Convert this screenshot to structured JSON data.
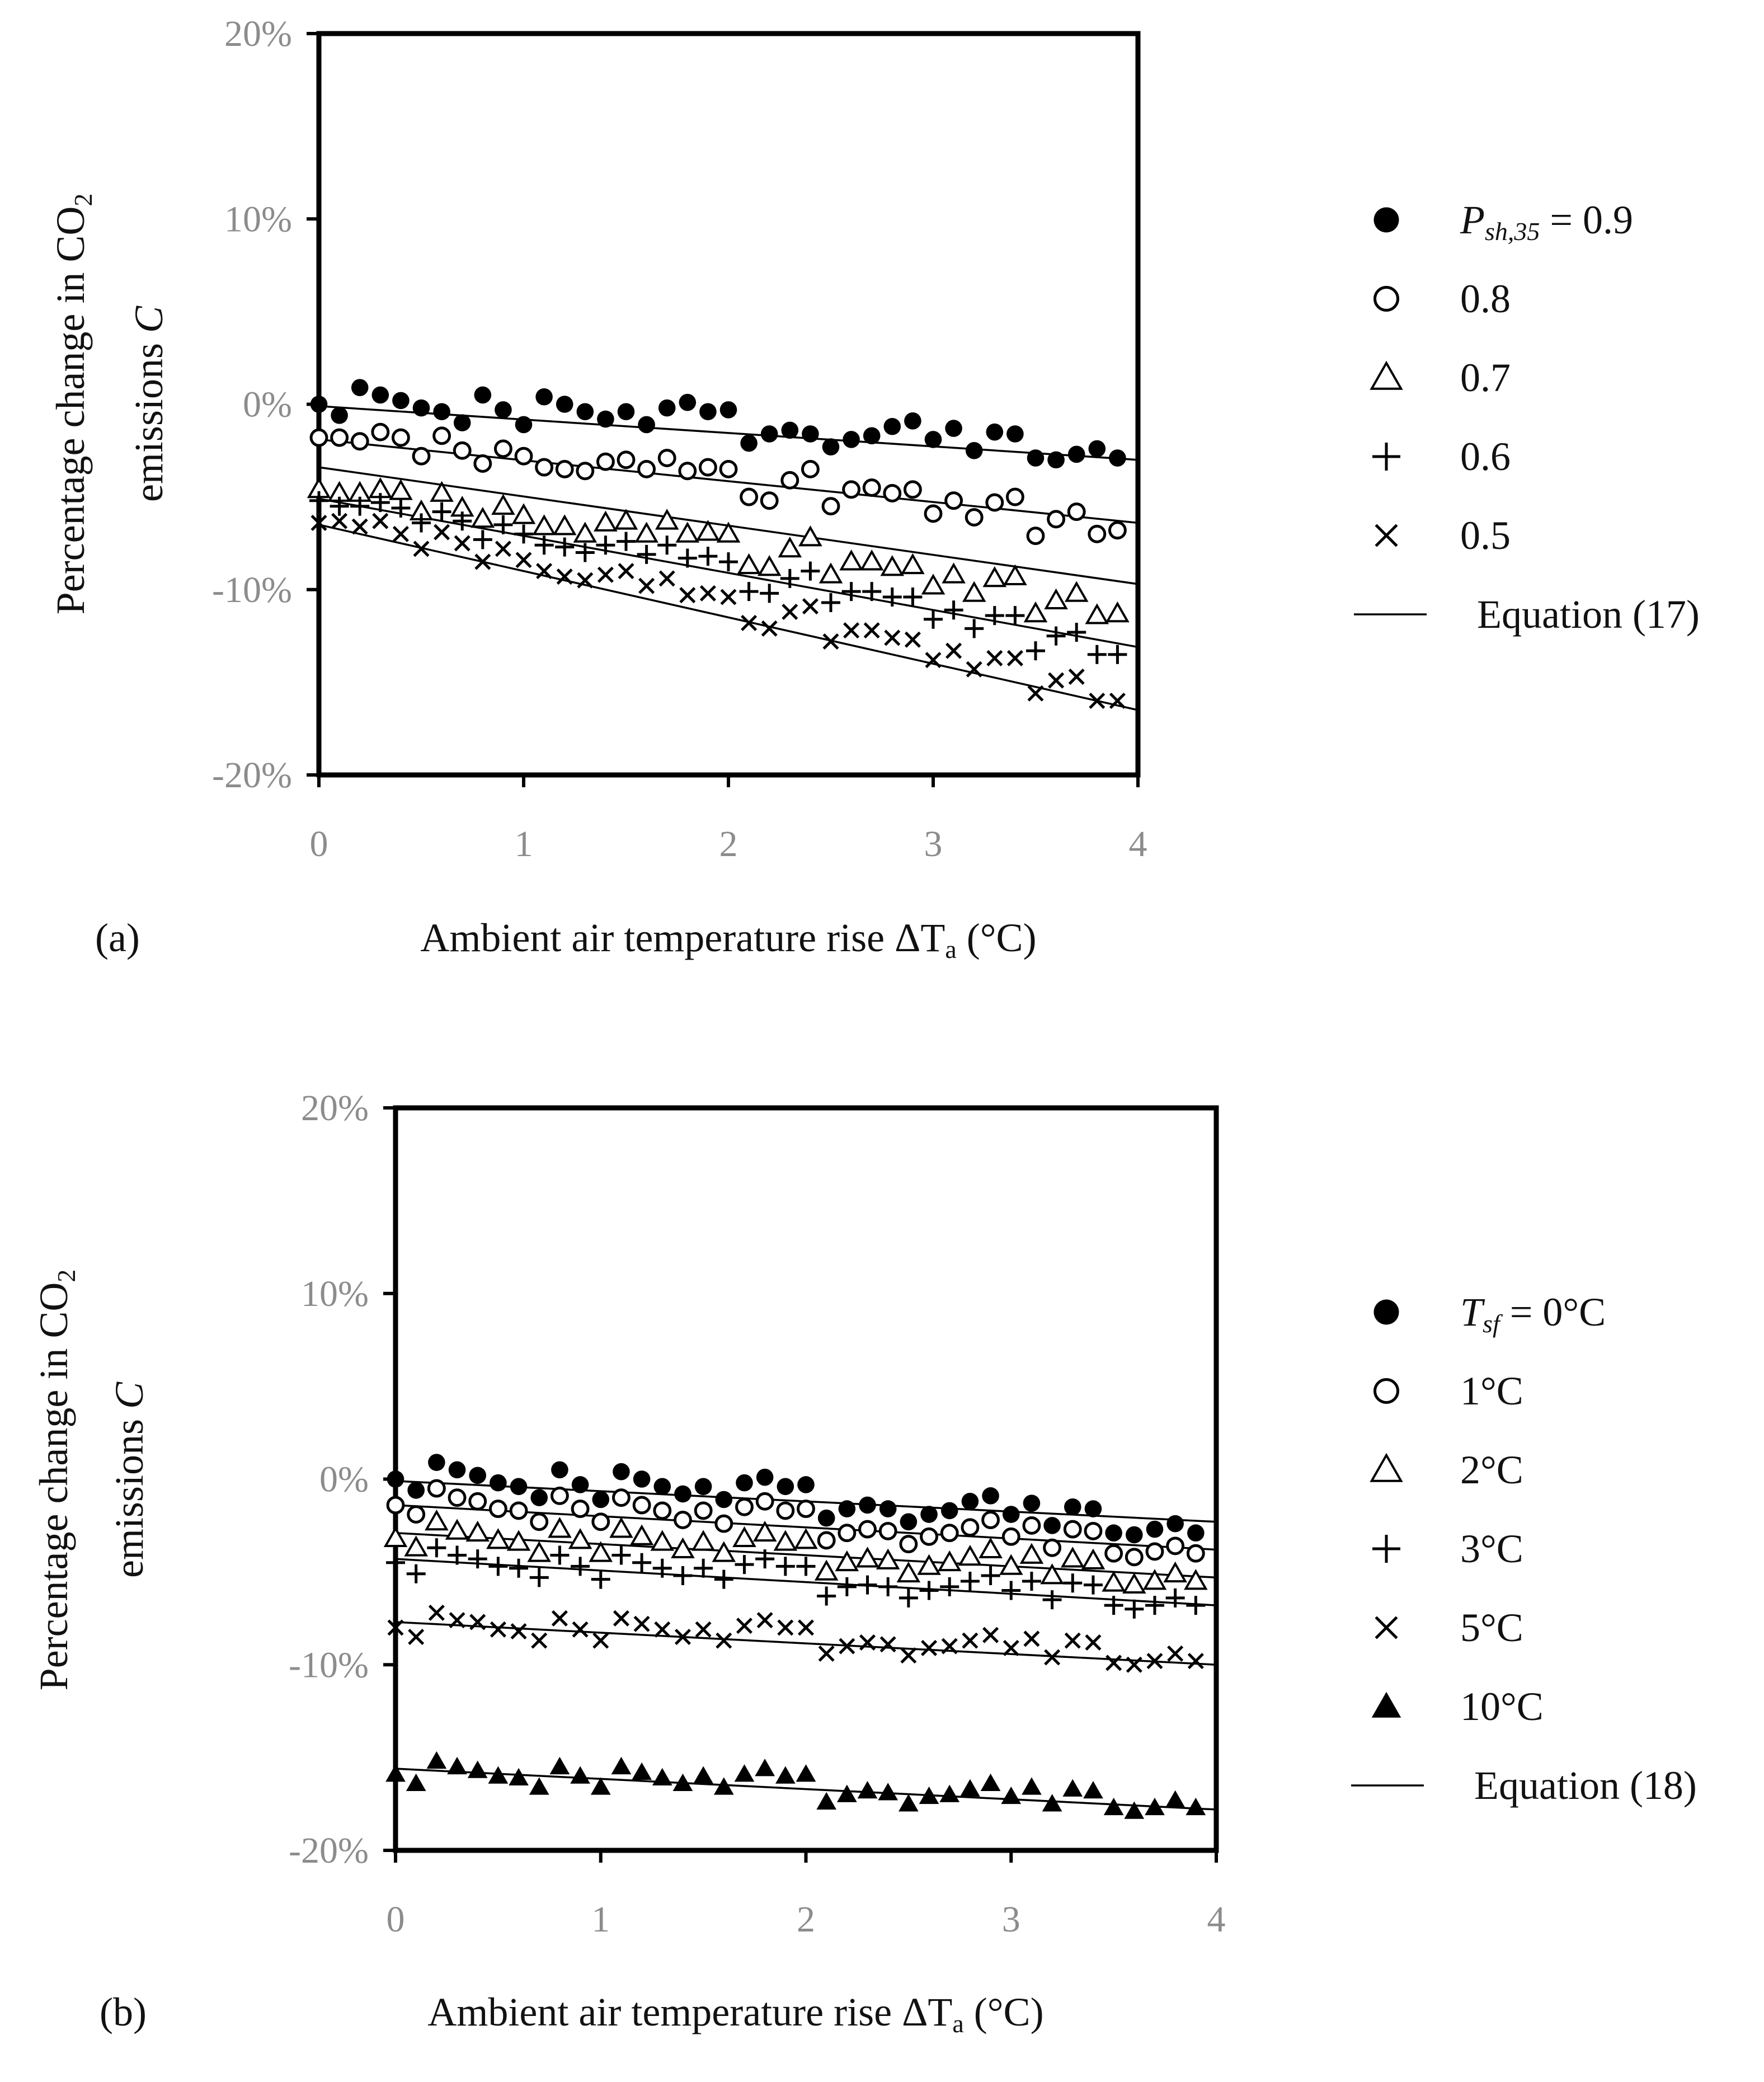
{
  "colors": {
    "ink": "#000000",
    "tick": "#8c8c8c",
    "background": "#ffffff"
  },
  "chart_data": [
    {
      "type": "scatter",
      "panel_label": "(a)",
      "xlabel": {
        "text": "Ambient air temperature rise ΔT",
        "sub": "a",
        "tail": " (°C)"
      },
      "ylabel": {
        "line1": "Percentage change in CO",
        "line1_sub": "2",
        "line2": "emissions ",
        "line2_italic": "C"
      },
      "xlim": [
        0,
        4
      ],
      "ylim": [
        -0.2,
        0.2
      ],
      "xticks": [
        0,
        1,
        2,
        3,
        4
      ],
      "xtick_labels": [
        "0",
        "1",
        "2",
        "3",
        "4"
      ],
      "yticks": [
        0.2,
        0.1,
        0.0,
        -0.1,
        -0.2
      ],
      "ytick_labels": [
        "20%",
        "10%",
        "0%",
        "-10%",
        "-20%"
      ],
      "grid": false,
      "legend_position": "right",
      "legend_title": {
        "italic": "P",
        "sub": "sh,35",
        "tail": " = 0.9"
      },
      "legend_line_label": "Equation (17)",
      "x": [
        0.0,
        0.1,
        0.2,
        0.3,
        0.4,
        0.5,
        0.6,
        0.7,
        0.8,
        0.9,
        1.0,
        1.1,
        1.2,
        1.3,
        1.4,
        1.5,
        1.6,
        1.7,
        1.8,
        1.9,
        2.0,
        2.1,
        2.2,
        2.3,
        2.4,
        2.5,
        2.6,
        2.7,
        2.8,
        2.9,
        3.0,
        3.1,
        3.2,
        3.3,
        3.4,
        3.5,
        3.6,
        3.7,
        3.8,
        3.9
      ],
      "series": [
        {
          "name": "0.9",
          "marker": "filled-circle",
          "fit": [
            -0.001,
            -0.03
          ],
          "values": [
            0.0,
            -0.006,
            0.009,
            0.005,
            0.002,
            -0.002,
            -0.004,
            -0.01,
            0.005,
            -0.003,
            -0.011,
            0.004,
            0.0,
            -0.004,
            -0.008,
            -0.004,
            -0.011,
            -0.002,
            0.001,
            -0.004,
            -0.003,
            -0.021,
            -0.016,
            -0.014,
            -0.016,
            -0.023,
            -0.019,
            -0.017,
            -0.012,
            -0.009,
            -0.019,
            -0.013,
            -0.025,
            -0.015,
            -0.016,
            -0.029,
            -0.03,
            -0.027,
            -0.024,
            -0.029
          ]
        },
        {
          "name": "0.8",
          "marker": "open-circle",
          "fit": [
            -0.019,
            -0.064
          ],
          "values": [
            -0.018,
            -0.018,
            -0.02,
            -0.015,
            -0.018,
            -0.028,
            -0.017,
            -0.025,
            -0.032,
            -0.024,
            -0.028,
            -0.034,
            -0.035,
            -0.036,
            -0.031,
            -0.03,
            -0.035,
            -0.029,
            -0.036,
            -0.034,
            -0.035,
            -0.05,
            -0.052,
            -0.041,
            -0.035,
            -0.055,
            -0.046,
            -0.045,
            -0.048,
            -0.046,
            -0.059,
            -0.052,
            -0.061,
            -0.053,
            -0.05,
            -0.071,
            -0.062,
            -0.058,
            -0.07,
            -0.068
          ]
        },
        {
          "name": "0.7",
          "marker": "open-triangle",
          "fit": [
            -0.034,
            -0.097
          ],
          "values": [
            -0.046,
            -0.048,
            -0.048,
            -0.046,
            -0.047,
            -0.058,
            -0.048,
            -0.056,
            -0.062,
            -0.055,
            -0.06,
            -0.066,
            -0.066,
            -0.07,
            -0.064,
            -0.063,
            -0.07,
            -0.063,
            -0.07,
            -0.069,
            -0.07,
            -0.087,
            -0.088,
            -0.078,
            -0.072,
            -0.092,
            -0.085,
            -0.085,
            -0.088,
            -0.087,
            -0.098,
            -0.092,
            -0.102,
            -0.094,
            -0.093,
            -0.113,
            -0.106,
            -0.102,
            -0.114,
            -0.113
          ]
        },
        {
          "name": "0.6",
          "marker": "plus",
          "fit": [
            -0.051,
            -0.131
          ],
          "values": [
            -0.052,
            -0.055,
            -0.055,
            -0.053,
            -0.056,
            -0.064,
            -0.058,
            -0.063,
            -0.073,
            -0.065,
            -0.07,
            -0.076,
            -0.077,
            -0.08,
            -0.076,
            -0.074,
            -0.081,
            -0.076,
            -0.083,
            -0.082,
            -0.085,
            -0.101,
            -0.102,
            -0.094,
            -0.09,
            -0.107,
            -0.101,
            -0.101,
            -0.104,
            -0.104,
            -0.116,
            -0.111,
            -0.121,
            -0.114,
            -0.114,
            -0.133,
            -0.125,
            -0.123,
            -0.135,
            -0.135
          ]
        },
        {
          "name": "0.5",
          "marker": "cross",
          "fit": [
            -0.065,
            -0.165
          ],
          "values": [
            -0.064,
            -0.063,
            -0.066,
            -0.063,
            -0.07,
            -0.078,
            -0.069,
            -0.075,
            -0.085,
            -0.078,
            -0.084,
            -0.09,
            -0.093,
            -0.095,
            -0.092,
            -0.09,
            -0.098,
            -0.094,
            -0.103,
            -0.102,
            -0.104,
            -0.118,
            -0.121,
            -0.112,
            -0.109,
            -0.128,
            -0.122,
            -0.122,
            -0.126,
            -0.127,
            -0.138,
            -0.133,
            -0.143,
            -0.137,
            -0.137,
            -0.156,
            -0.149,
            -0.147,
            -0.16,
            -0.16
          ]
        }
      ]
    },
    {
      "type": "scatter",
      "panel_label": "(b)",
      "xlabel": {
        "text": "Ambient air temperature rise ΔT",
        "sub": "a",
        "tail": " (°C)"
      },
      "ylabel": {
        "line1": "Percentage change in CO",
        "line1_sub": "2",
        "line2": "emissions ",
        "line2_italic": "C"
      },
      "xlim": [
        0,
        4
      ],
      "ylim": [
        -0.2,
        0.2
      ],
      "xticks": [
        0,
        1,
        2,
        3,
        4
      ],
      "xtick_labels": [
        "0",
        "1",
        "2",
        "3",
        "4"
      ],
      "yticks": [
        0.2,
        0.1,
        0.0,
        -0.1,
        -0.2
      ],
      "ytick_labels": [
        "20%",
        "10%",
        "0%",
        "-10%",
        "-20%"
      ],
      "grid": false,
      "legend_position": "right",
      "legend_title": {
        "italic": "T",
        "sub": "sf",
        "tail": "   = 0°C"
      },
      "legend_line_label": "Equation (18)",
      "x": [
        0.0,
        0.1,
        0.2,
        0.3,
        0.4,
        0.5,
        0.6,
        0.7,
        0.8,
        0.9,
        1.0,
        1.1,
        1.2,
        1.3,
        1.4,
        1.5,
        1.6,
        1.7,
        1.8,
        1.9,
        2.0,
        2.1,
        2.2,
        2.3,
        2.4,
        2.5,
        2.6,
        2.7,
        2.8,
        2.9,
        3.0,
        3.1,
        3.2,
        3.3,
        3.4,
        3.5,
        3.6,
        3.7,
        3.8,
        3.9
      ],
      "series": [
        {
          "name": "0°C",
          "marker": "filled-circle",
          "fit": [
            -0.001,
            -0.023
          ],
          "values": [
            0.0,
            -0.006,
            0.009,
            0.005,
            0.002,
            -0.002,
            -0.004,
            -0.01,
            0.005,
            -0.003,
            -0.011,
            0.004,
            0.0,
            -0.004,
            -0.008,
            -0.004,
            -0.011,
            -0.002,
            0.001,
            -0.004,
            -0.003,
            -0.021,
            -0.016,
            -0.014,
            -0.016,
            -0.023,
            -0.019,
            -0.017,
            -0.012,
            -0.009,
            -0.019,
            -0.013,
            -0.025,
            -0.015,
            -0.016,
            -0.029,
            -0.03,
            -0.027,
            -0.024,
            -0.029
          ]
        },
        {
          "name": "1°C",
          "marker": "open-circle",
          "fit": [
            -0.014,
            -0.038
          ],
          "values": [
            -0.014,
            -0.019,
            -0.005,
            -0.01,
            -0.012,
            -0.016,
            -0.017,
            -0.023,
            -0.009,
            -0.016,
            -0.023,
            -0.01,
            -0.014,
            -0.017,
            -0.022,
            -0.017,
            -0.024,
            -0.015,
            -0.012,
            -0.017,
            -0.016,
            -0.033,
            -0.029,
            -0.027,
            -0.028,
            -0.035,
            -0.031,
            -0.029,
            -0.026,
            -0.022,
            -0.031,
            -0.025,
            -0.037,
            -0.027,
            -0.028,
            -0.04,
            -0.042,
            -0.039,
            -0.036,
            -0.04
          ]
        },
        {
          "name": "2°C",
          "marker": "open-triangle",
          "fit": [
            -0.029,
            -0.053
          ],
          "values": [
            -0.032,
            -0.037,
            -0.023,
            -0.028,
            -0.029,
            -0.033,
            -0.034,
            -0.04,
            -0.027,
            -0.033,
            -0.04,
            -0.027,
            -0.031,
            -0.034,
            -0.038,
            -0.034,
            -0.04,
            -0.032,
            -0.029,
            -0.034,
            -0.033,
            -0.05,
            -0.045,
            -0.043,
            -0.044,
            -0.051,
            -0.047,
            -0.045,
            -0.042,
            -0.038,
            -0.047,
            -0.041,
            -0.052,
            -0.043,
            -0.044,
            -0.056,
            -0.057,
            -0.055,
            -0.051,
            -0.055
          ]
        },
        {
          "name": "3°C",
          "marker": "plus",
          "fit": [
            -0.043,
            -0.068
          ],
          "values": [
            -0.045,
            -0.051,
            -0.037,
            -0.041,
            -0.043,
            -0.047,
            -0.048,
            -0.053,
            -0.041,
            -0.047,
            -0.054,
            -0.041,
            -0.045,
            -0.048,
            -0.052,
            -0.048,
            -0.054,
            -0.046,
            -0.043,
            -0.047,
            -0.047,
            -0.063,
            -0.058,
            -0.057,
            -0.058,
            -0.064,
            -0.06,
            -0.058,
            -0.055,
            -0.052,
            -0.06,
            -0.055,
            -0.065,
            -0.056,
            -0.057,
            -0.068,
            -0.07,
            -0.068,
            -0.064,
            -0.068
          ]
        },
        {
          "name": "5°C",
          "marker": "cross",
          "fit": [
            -0.077,
            -0.1
          ],
          "values": [
            -0.08,
            -0.085,
            -0.072,
            -0.076,
            -0.077,
            -0.081,
            -0.082,
            -0.087,
            -0.075,
            -0.081,
            -0.087,
            -0.075,
            -0.078,
            -0.081,
            -0.085,
            -0.081,
            -0.087,
            -0.079,
            -0.076,
            -0.08,
            -0.08,
            -0.094,
            -0.09,
            -0.088,
            -0.089,
            -0.095,
            -0.091,
            -0.09,
            -0.087,
            -0.084,
            -0.091,
            -0.086,
            -0.096,
            -0.087,
            -0.088,
            -0.099,
            -0.1,
            -0.098,
            -0.094,
            -0.098
          ]
        },
        {
          "name": "10°C",
          "marker": "filled-triangle",
          "fit": [
            -0.156,
            -0.178
          ],
          "values": [
            -0.159,
            -0.164,
            -0.152,
            -0.155,
            -0.157,
            -0.16,
            -0.161,
            -0.166,
            -0.155,
            -0.16,
            -0.166,
            -0.155,
            -0.158,
            -0.161,
            -0.164,
            -0.16,
            -0.166,
            -0.159,
            -0.156,
            -0.16,
            -0.159,
            -0.174,
            -0.17,
            -0.168,
            -0.169,
            -0.175,
            -0.171,
            -0.17,
            -0.167,
            -0.164,
            -0.171,
            -0.166,
            -0.175,
            -0.167,
            -0.168,
            -0.177,
            -0.179,
            -0.177,
            -0.173,
            -0.177
          ]
        }
      ]
    }
  ]
}
